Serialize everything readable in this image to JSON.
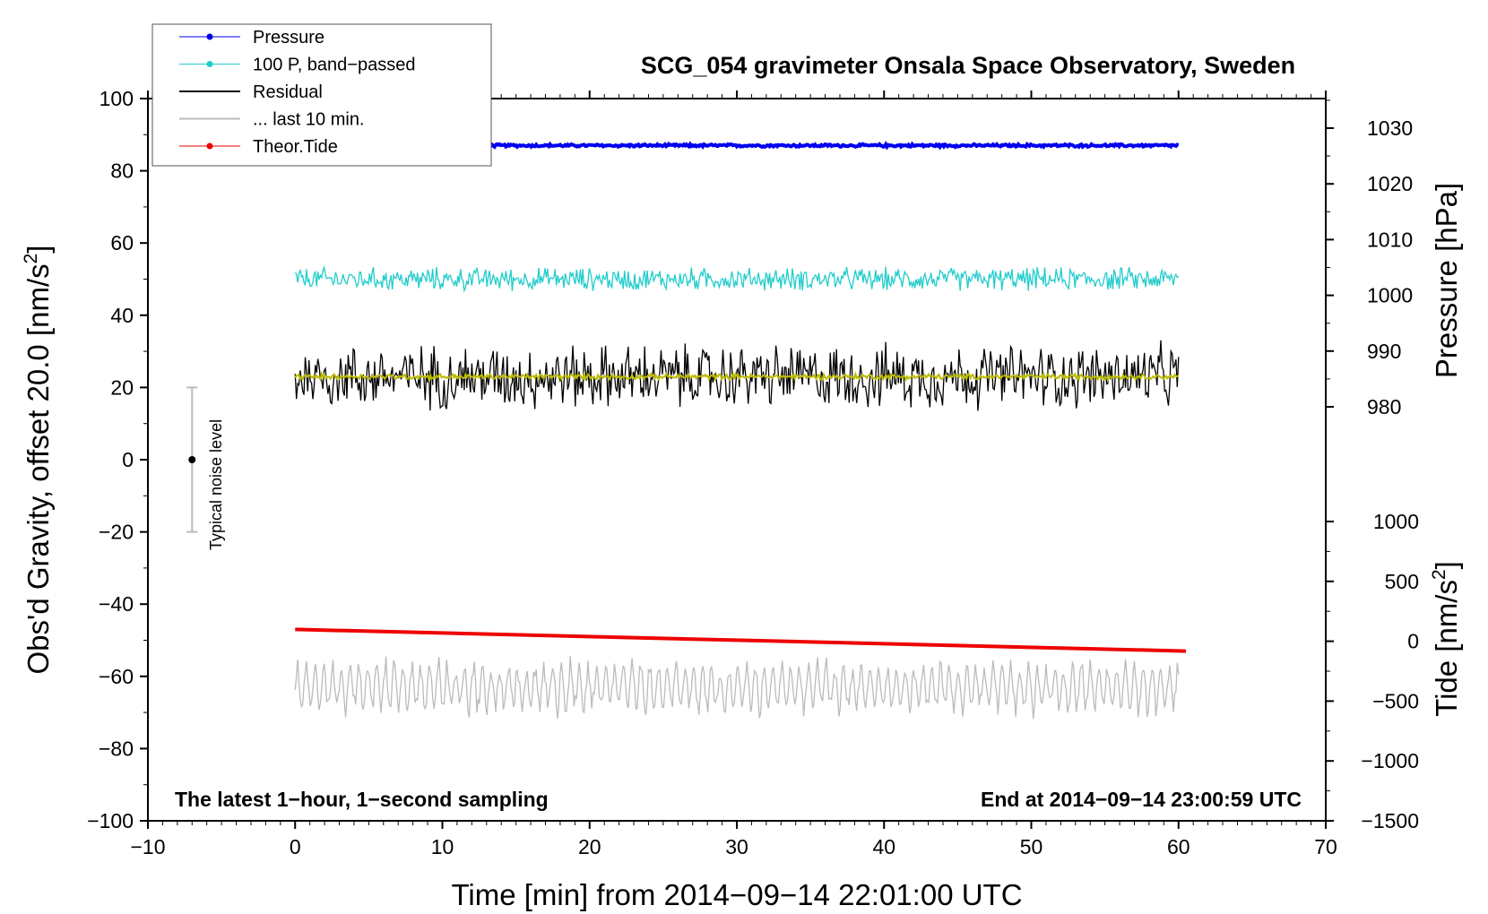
{
  "chart_data": {
    "type": "line",
    "title": "SCG_054 gravimeter Onsala Space Observatory, Sweden",
    "xlabel": "Time [min] from 2014−09−14 22:01:00 UTC",
    "ylabel_main": "Obs'd Gravity, offset 20.0 [nm/s",
    "ylabel_main_sup": "2",
    "ylabel_main_end": "]",
    "ylabel_pressure": "Pressure [hPa]",
    "ylabel_tide": "Tide [nm/s",
    "ylabel_tide_sup": "2",
    "ylabel_tide_end": "]",
    "xlim": [
      -10,
      70
    ],
    "ylim": [
      -100,
      100
    ],
    "x_ticks": [
      "−10",
      "0",
      "10",
      "20",
      "30",
      "40",
      "50",
      "60",
      "70"
    ],
    "y_ticks": [
      "100",
      "80",
      "60",
      "40",
      "20",
      "0",
      "−20",
      "−40",
      "−60",
      "−80",
      "−100"
    ],
    "pressure_ticks": [
      "1030",
      "1020",
      "1010",
      "1000",
      "990",
      "980"
    ],
    "pressure_range": [
      980,
      1030
    ],
    "tide_ticks": [
      "1000",
      "500",
      "0",
      "−500",
      "−1000",
      "−1500"
    ],
    "tide_range": [
      -1500,
      1000
    ],
    "note_left": "The latest 1−hour, 1−second sampling",
    "note_right": "End at 2014−09−14 23:00:59 UTC",
    "noise_label": "Typical noise level",
    "noise_bar": {
      "x": -7,
      "center": 0,
      "low": -20,
      "high": 20
    },
    "legend": [
      {
        "label": "Pressure",
        "color": "#0000ee",
        "marker": true
      },
      {
        "label": "100 P, band−passed",
        "color": "#22cccc",
        "marker": true
      },
      {
        "label": "Residual",
        "color": "#000000",
        "marker": false
      },
      {
        "label": "... last 10 min.",
        "color": "#bbbbbb",
        "marker": false
      },
      {
        "label": "Theor.Tide",
        "color": "#ee0000",
        "marker": true
      }
    ],
    "series": [
      {
        "name": "Pressure",
        "color": "#0000ee",
        "x_range": [
          0,
          60
        ],
        "level": 87,
        "noise": 0.3
      },
      {
        "name": "100 P, band-passed",
        "color": "#22cccc",
        "x_range": [
          0,
          60
        ],
        "level": 50,
        "noise": 2.5
      },
      {
        "name": "Residual",
        "color": "#000000",
        "x_range": [
          0,
          60
        ],
        "level": 23,
        "noise": 7
      },
      {
        "name": "Residual smoothed",
        "color": "#bbbb00",
        "x_range": [
          0,
          60
        ],
        "level": 23,
        "noise": 0.6
      },
      {
        "name": "... last 10 min.",
        "color": "#bbbbbb",
        "x_range": [
          0,
          60
        ],
        "level": -63,
        "noise": 5
      },
      {
        "name": "Theor.Tide",
        "color": "#ee0000",
        "x_range": [
          0,
          60.5
        ],
        "start": -47,
        "end": -53
      }
    ]
  }
}
